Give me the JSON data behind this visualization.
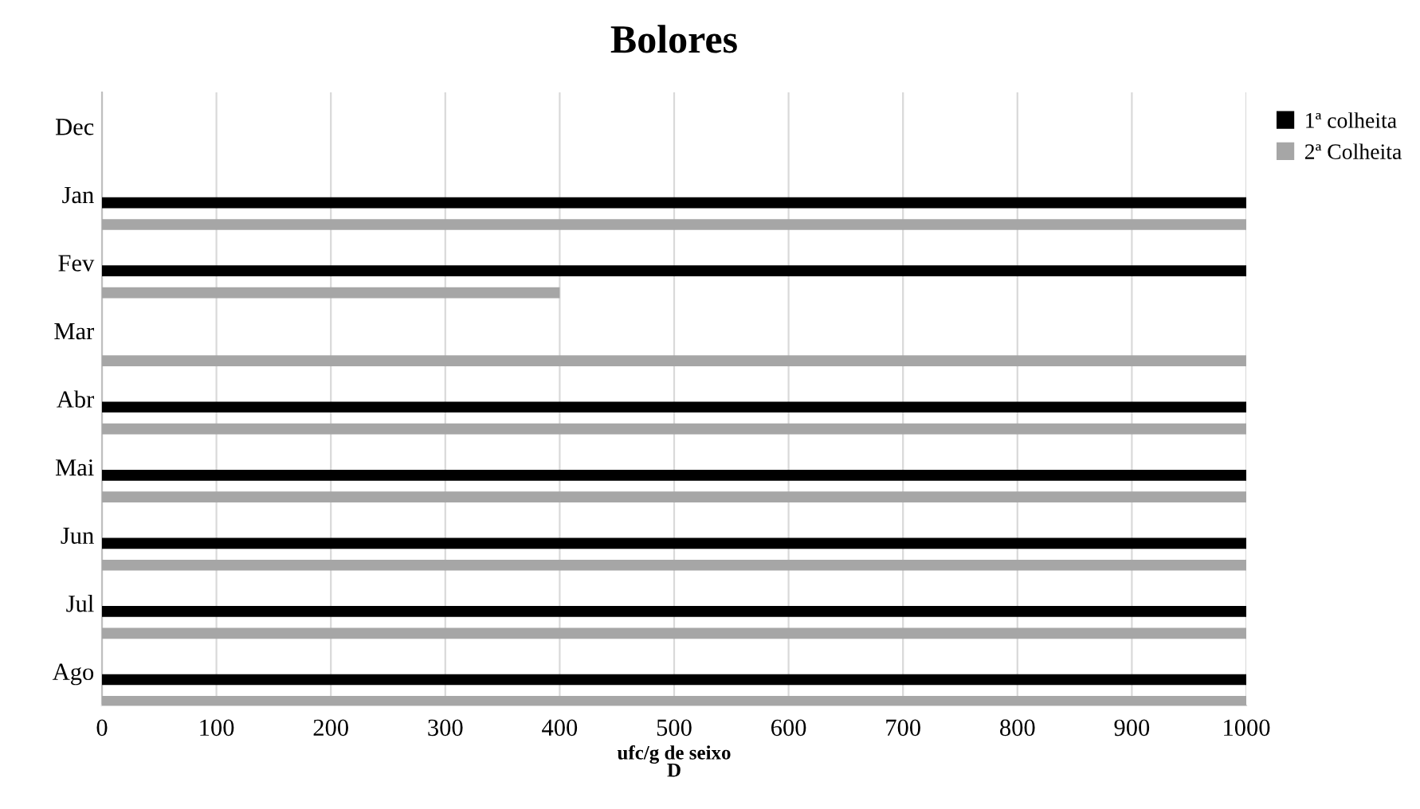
{
  "chart_data": {
    "type": "bar",
    "orientation": "horizontal",
    "title": "Bolores",
    "xlabel": "ufc/g de seixo",
    "annotations": [
      "D"
    ],
    "categories": [
      "Dec",
      "Jan",
      "Fev",
      "Mar",
      "Abr",
      "Mai",
      "Jun",
      "Jul",
      "Ago"
    ],
    "series": [
      {
        "name": "1ª colheita",
        "color": "#000000",
        "values": [
          null,
          1000,
          1000,
          null,
          1000,
          1000,
          1000,
          1000,
          1000
        ]
      },
      {
        "name": "2ª Colheita",
        "color": "#a6a6a6",
        "values": [
          null,
          1000,
          400,
          1000,
          1000,
          1000,
          1000,
          1000,
          1000
        ]
      }
    ],
    "xlim": [
      0,
      1000
    ],
    "xticks": [
      0,
      100,
      200,
      300,
      400,
      500,
      600,
      700,
      800,
      900,
      1000
    ],
    "grid": "x",
    "legend": "top right"
  }
}
